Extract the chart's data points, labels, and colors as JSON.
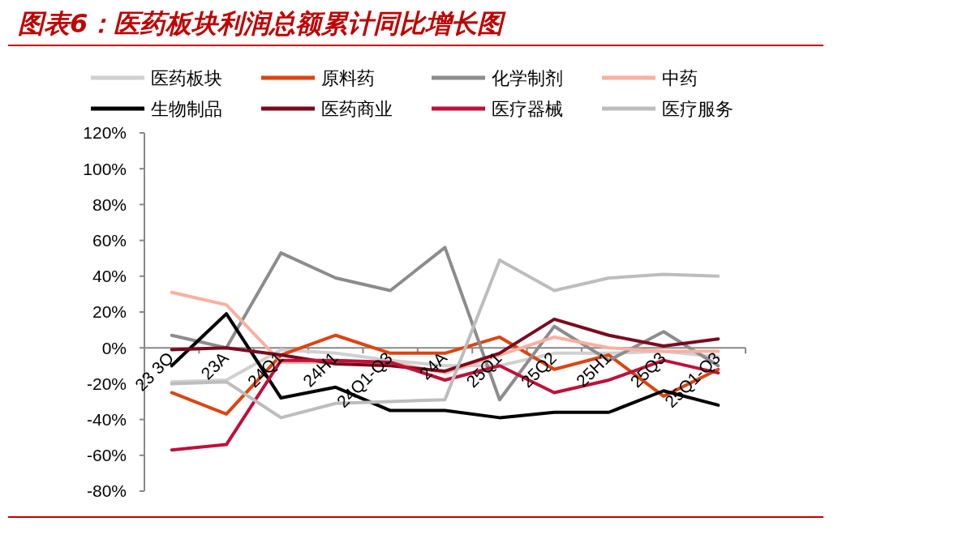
{
  "chart_data": {
    "type": "line",
    "title": "图表6：医药板块利润总额累计同比增长图",
    "categories": [
      "23 3Q",
      "23A",
      "24Q1",
      "24H1",
      "24Q1-Q3",
      "24A",
      "25Q1",
      "25Q2",
      "25H1",
      "25Q3",
      "25Q1-Q3"
    ],
    "series": [
      {
        "name": "医药板块",
        "color": "#d0d0d0",
        "values": [
          -19,
          -18,
          -1,
          -3,
          -7,
          -10,
          -10,
          -3,
          -3,
          -2,
          -5
        ]
      },
      {
        "name": "原料药",
        "color": "#dd4411",
        "values": [
          -25,
          -37,
          -4,
          7,
          -3,
          -3,
          6,
          -12,
          -4,
          -27,
          -12
        ]
      },
      {
        "name": "化学制剂",
        "color": "#8c8c8c",
        "values": [
          7,
          0,
          53,
          39,
          32,
          56,
          -29,
          12,
          -7,
          9,
          -10
        ]
      },
      {
        "name": "中药",
        "color": "#f9b0a0",
        "values": [
          31,
          24,
          -8,
          -8,
          -8,
          -14,
          -4,
          6,
          0,
          -2,
          -2
        ]
      },
      {
        "name": "生物制品",
        "color": "#000000",
        "values": [
          -10,
          19,
          -28,
          -22,
          -35,
          -35,
          -39,
          -36,
          -36,
          -24,
          -32
        ]
      },
      {
        "name": "医药商业",
        "color": "#7a0a1e",
        "values": [
          -1,
          0,
          -4,
          -9,
          -10,
          -13,
          -3,
          16,
          7,
          1,
          5
        ]
      },
      {
        "name": "医疗器械",
        "color": "#c0103a",
        "values": [
          -57,
          -54,
          -7,
          -7,
          -8,
          -18,
          -10,
          -25,
          -18,
          -7,
          -14
        ]
      },
      {
        "name": "医疗服务",
        "color": "#bdbdbd",
        "values": [
          -20,
          -19,
          -39,
          -31,
          -30,
          -29,
          49,
          32,
          39,
          41,
          40
        ]
      }
    ],
    "ylim": [
      -80,
      120
    ],
    "yticks": [
      {
        "value": -80,
        "label": "-80%"
      },
      {
        "value": -60,
        "label": "-60%"
      },
      {
        "value": -40,
        "label": "-40%"
      },
      {
        "value": -20,
        "label": "-20%"
      },
      {
        "value": 0,
        "label": "0%"
      },
      {
        "value": 20,
        "label": "20%"
      },
      {
        "value": 40,
        "label": "40%"
      },
      {
        "value": 60,
        "label": "60%"
      },
      {
        "value": 80,
        "label": "80%"
      },
      {
        "value": 100,
        "label": "100%"
      },
      {
        "value": 120,
        "label": "120%"
      }
    ],
    "legend": "top",
    "line_style": "solid",
    "marker": "none",
    "grid": false
  }
}
